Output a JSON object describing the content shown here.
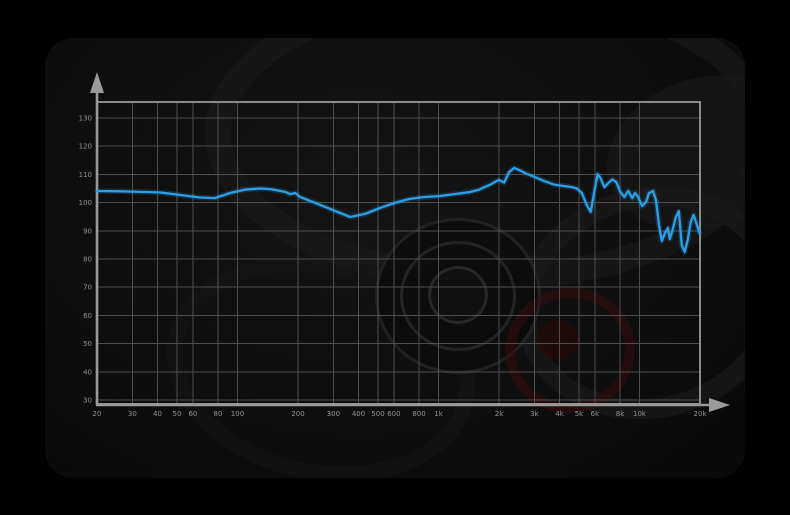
{
  "page": {
    "background": "#000000"
  },
  "card": {
    "background": "#0e0e0e",
    "decoration": "faint-exploded-headphones-photo"
  },
  "chart_data": {
    "type": "line",
    "title": "",
    "subtitle": "",
    "xlabel": "",
    "ylabel": "",
    "legend": "none",
    "grid": true,
    "x_scale": "log",
    "xlim": [
      20,
      20000
    ],
    "ylim": [
      30,
      130
    ],
    "x_ticks": [
      {
        "f": 20,
        "label": "20"
      },
      {
        "f": 30,
        "label": "30"
      },
      {
        "f": 40,
        "label": "40"
      },
      {
        "f": 50,
        "label": "50"
      },
      {
        "f": 60,
        "label": "60"
      },
      {
        "f": 80,
        "label": "80"
      },
      {
        "f": 100,
        "label": "100"
      },
      {
        "f": 200,
        "label": "200"
      },
      {
        "f": 300,
        "label": "300"
      },
      {
        "f": 400,
        "label": "400"
      },
      {
        "f": 500,
        "label": "500"
      },
      {
        "f": 600,
        "label": "600"
      },
      {
        "f": 800,
        "label": "800"
      },
      {
        "f": 1000,
        "label": "1k"
      },
      {
        "f": 2000,
        "label": "2k"
      },
      {
        "f": 3000,
        "label": "3k"
      },
      {
        "f": 4000,
        "label": "4k"
      },
      {
        "f": 5000,
        "label": "5k"
      },
      {
        "f": 6000,
        "label": "6k"
      },
      {
        "f": 8000,
        "label": "8k"
      },
      {
        "f": 10000,
        "label": "10k"
      },
      {
        "f": 20000,
        "label": "20k"
      }
    ],
    "y_ticks": [
      {
        "v": 130,
        "label": "130"
      },
      {
        "v": 120,
        "label": "120"
      },
      {
        "v": 110,
        "label": "110"
      },
      {
        "v": 100,
        "label": "100"
      },
      {
        "v": 90,
        "label": "90"
      },
      {
        "v": 80,
        "label": "80"
      },
      {
        "v": 70,
        "label": "70"
      },
      {
        "v": 60,
        "label": "60"
      },
      {
        "v": 50,
        "label": "50"
      },
      {
        "v": 40,
        "label": "40"
      },
      {
        "v": 30,
        "label": "30"
      }
    ],
    "colors": {
      "curve": "#2b9fe8",
      "grid": "#4f4f4f",
      "frame": "#8a8a8a",
      "axis": "#9a9a9a",
      "labels": "#929292"
    },
    "series": [
      {
        "name": "frequency-response",
        "points": [
          [
            20,
            104.1
          ],
          [
            26,
            104.0
          ],
          [
            33,
            103.8
          ],
          [
            41,
            103.6
          ],
          [
            52,
            102.7
          ],
          [
            65,
            101.8
          ],
          [
            77,
            101.6
          ],
          [
            92,
            103.4
          ],
          [
            109,
            104.6
          ],
          [
            130,
            105.0
          ],
          [
            146,
            104.8
          ],
          [
            173,
            103.8
          ],
          [
            183,
            103.0
          ],
          [
            194,
            103.4
          ],
          [
            205,
            102.0
          ],
          [
            230,
            100.6
          ],
          [
            259,
            99.1
          ],
          [
            307,
            97.0
          ],
          [
            364,
            94.9
          ],
          [
            431,
            96.0
          ],
          [
            511,
            98.1
          ],
          [
            606,
            99.9
          ],
          [
            719,
            101.3
          ],
          [
            852,
            102.0
          ],
          [
            1010,
            102.3
          ],
          [
            1198,
            103.0
          ],
          [
            1420,
            103.7
          ],
          [
            1594,
            104.6
          ],
          [
            1790,
            106.2
          ],
          [
            1936,
            107.6
          ],
          [
            2003,
            108.0
          ],
          [
            2121,
            107.1
          ],
          [
            2246,
            110.8
          ],
          [
            2378,
            112.3
          ],
          [
            2518,
            111.6
          ],
          [
            2729,
            110.3
          ],
          [
            2985,
            109.2
          ],
          [
            3349,
            107.7
          ],
          [
            3757,
            106.4
          ],
          [
            4215,
            105.9
          ],
          [
            4614,
            105.5
          ],
          [
            4882,
            105.0
          ],
          [
            5166,
            103.4
          ],
          [
            5466,
            99.1
          ],
          [
            5717,
            96.7
          ],
          [
            5980,
            104.5
          ],
          [
            6187,
            110.1
          ],
          [
            6400,
            108.7
          ],
          [
            6697,
            105.5
          ],
          [
            7007,
            107.0
          ],
          [
            7332,
            108.2
          ],
          [
            7671,
            107.3
          ],
          [
            8027,
            103.8
          ],
          [
            8399,
            102.0
          ],
          [
            8788,
            104.1
          ],
          [
            9196,
            101.6
          ],
          [
            9514,
            103.4
          ],
          [
            9843,
            102.0
          ],
          [
            10303,
            98.8
          ],
          [
            10784,
            100.2
          ],
          [
            11156,
            103.4
          ],
          [
            11675,
            104.1
          ],
          [
            12079,
            100.9
          ],
          [
            12498,
            92.0
          ],
          [
            12931,
            86.4
          ],
          [
            13379,
            89.2
          ],
          [
            13842,
            91.0
          ],
          [
            14158,
            87.1
          ],
          [
            14648,
            90.6
          ],
          [
            15156,
            94.9
          ],
          [
            15681,
            97.0
          ],
          [
            16224,
            85.0
          ],
          [
            16786,
            82.5
          ],
          [
            17368,
            86.7
          ],
          [
            17970,
            93.1
          ],
          [
            18592,
            95.6
          ],
          [
            19017,
            93.5
          ],
          [
            19900,
            89.2
          ]
        ]
      }
    ]
  }
}
